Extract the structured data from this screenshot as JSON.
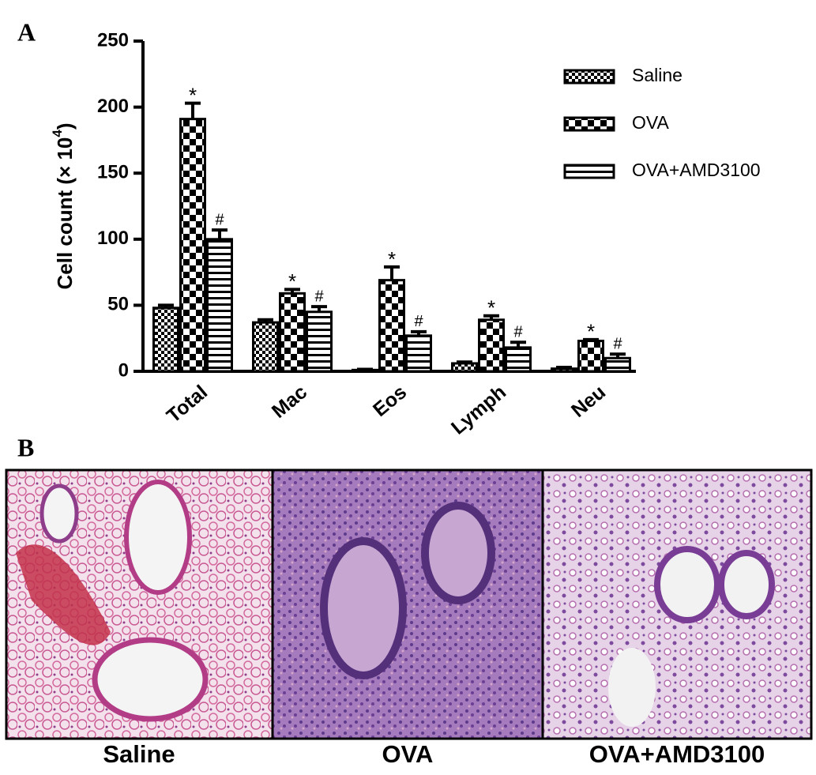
{
  "panel_labels": [
    "A",
    "B"
  ],
  "chart_data": {
    "type": "bar",
    "y_label": {
      "text": "Cell count (× 10",
      "superscript": "4",
      "suffix": ")"
    },
    "categories": [
      "Total",
      "Mac",
      "Eos",
      "Lymph",
      "Neu"
    ],
    "series": [
      {
        "name": "Saline",
        "color": "#000000",
        "pattern": "dots",
        "values": [
          48,
          37,
          1,
          6,
          2
        ],
        "errors": [
          2,
          2,
          0.5,
          1,
          1
        ]
      },
      {
        "name": "OVA",
        "color": "#000000",
        "pattern": "checker",
        "values": [
          191,
          59,
          69,
          39,
          23
        ],
        "errors": [
          12,
          3,
          10,
          3,
          1
        ],
        "significance": [
          "*",
          "*",
          "*",
          "*",
          "*"
        ]
      },
      {
        "name": "OVA+AMD3100",
        "color": "#000000",
        "pattern": "hstripes",
        "values": [
          100,
          45,
          27,
          18,
          10
        ],
        "errors": [
          7,
          4,
          3,
          4,
          3
        ],
        "significance": [
          "#",
          "#",
          "#",
          "#",
          "#"
        ]
      }
    ],
    "ylim": [
      0,
      250
    ],
    "yticks": [
      0,
      50,
      100,
      150,
      200,
      250
    ],
    "grid": false,
    "legend": "top-right"
  },
  "images": {
    "captions": [
      "Saline",
      "OVA",
      "OVA+AMD3100"
    ]
  }
}
